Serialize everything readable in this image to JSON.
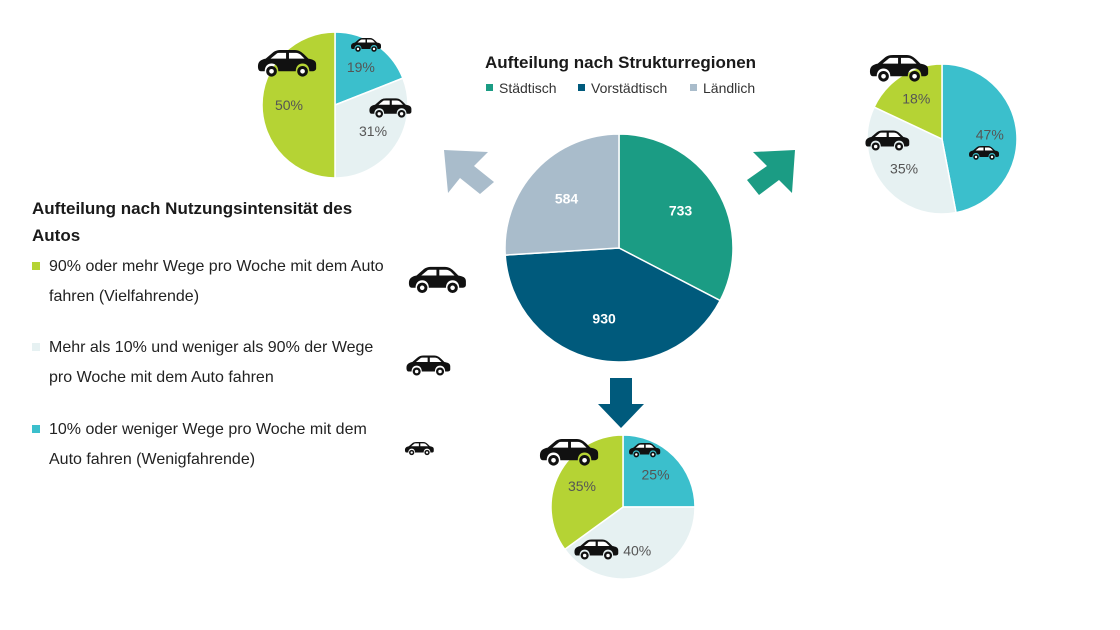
{
  "chart_data": [
    {
      "type": "pie",
      "title": "Aufteilung nach Strukturregionen",
      "categories": [
        "Städtisch",
        "Vorstädtisch",
        "Ländlich"
      ],
      "values": [
        733,
        930,
        584
      ],
      "colors": [
        "#1b9c84",
        "#005a7c",
        "#a9bccb"
      ],
      "legend_placement": "top"
    },
    {
      "type": "pie",
      "region": "Ländlich",
      "categories": [
        "10% oder weniger Wege pro Woche mit dem Auto fahren (Wenigfahrende)",
        "Mehr als 10% und weniger als 90% der Wege pro Woche mit dem Auto fahren",
        "90% oder mehr Wege pro Woche mit dem Auto fahren (Vielfahrende)"
      ],
      "values": [
        19,
        31,
        50
      ],
      "labels": [
        "19%",
        "31%",
        "50%"
      ]
    },
    {
      "type": "pie",
      "region": "Städtisch",
      "categories": [
        "10% oder weniger Wege pro Woche mit dem Auto fahren (Wenigfahrende)",
        "Mehr als 10% und weniger als 90% der Wege pro Woche mit dem Auto fahren",
        "90% oder mehr Wege pro Woche mit dem Auto fahren (Vielfahrende)"
      ],
      "values": [
        47,
        35,
        18
      ],
      "labels": [
        "47%",
        "35%",
        "18%"
      ]
    },
    {
      "type": "pie",
      "region": "Vorstädtisch",
      "categories": [
        "10% oder weniger Wege pro Woche mit dem Auto fahren (Wenigfahrende)",
        "Mehr als 10% und weniger als 90% der Wege pro Woche mit dem Auto fahren",
        "90% oder mehr Wege pro Woche mit dem Auto fahren (Vielfahrende)"
      ],
      "values": [
        25,
        40,
        35
      ],
      "labels": [
        "25%",
        "40%",
        "35%"
      ]
    }
  ],
  "usage_legend": {
    "title": "Aufteilung nach Nutzungsintensität des Autos",
    "items": [
      {
        "label": "90% oder mehr Wege pro Woche mit dem Auto fahren (Vielfahrende)",
        "color": "#b5d334",
        "icon": "car-large-icon"
      },
      {
        "label": "Mehr als 10% und weniger als 90% der Wege pro Woche mit dem Auto fahren",
        "color": "#e6f1f2",
        "icon": "car-medium-icon"
      },
      {
        "label": "10% oder weniger Wege pro Woche mit dem Auto fahren (Wenigfahrende)",
        "color": "#3bbfcc",
        "icon": "car-small-icon"
      }
    ]
  },
  "colors": {
    "staedtisch": "#1b9c84",
    "vorstaedtisch": "#005a7c",
    "laendlich": "#a9bccb",
    "viel": "#b5d334",
    "mittel": "#e6f1f2",
    "wenig": "#3bbfcc",
    "label_on_light": "#555555",
    "label_on_dark": "#ffffff"
  }
}
